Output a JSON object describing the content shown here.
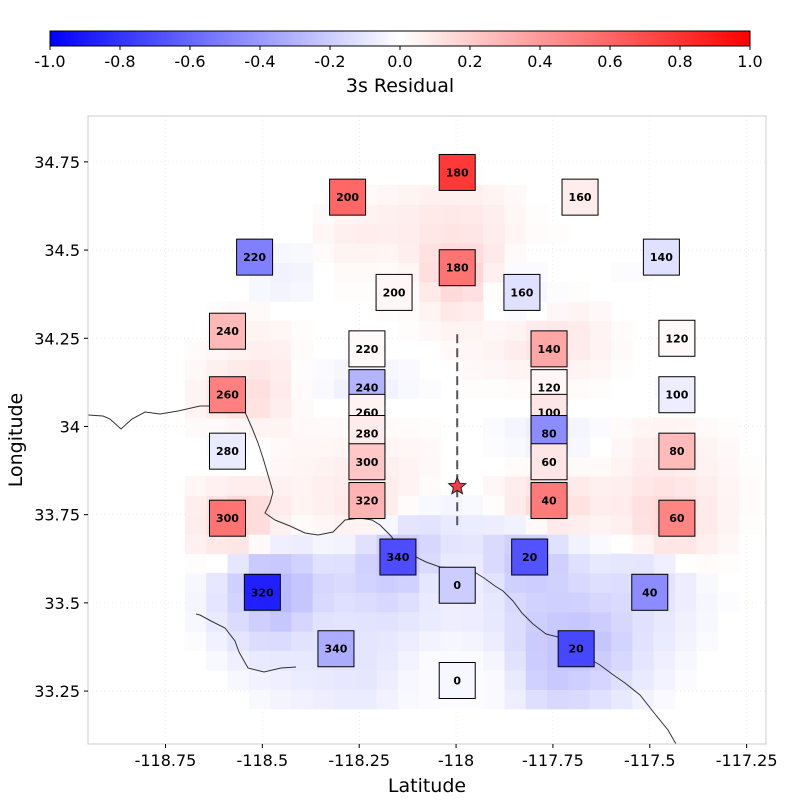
{
  "chart_data": {
    "type": "heatmap",
    "xlabel": "Latitude",
    "ylabel": "Longitude",
    "colorbar": {
      "label": "3s Residual",
      "range": [
        -1.0,
        1.0
      ],
      "ticks": [
        "-1.0",
        "-0.8",
        "-0.6",
        "-0.4",
        "-0.2",
        "0.0",
        "0.2",
        "0.4",
        "0.6",
        "0.8",
        "1.0"
      ],
      "colors": {
        "low": "#0000ff",
        "mid": "#ffffff",
        "high": "#ff0000"
      }
    },
    "xlim": [
      -118.95,
      -117.2
    ],
    "ylim": [
      33.1,
      34.88
    ],
    "xticks": [
      -118.75,
      -118.5,
      -118.25,
      -118,
      -117.75,
      -117.5,
      -117.25
    ],
    "xtick_labels": [
      "-118.75",
      "-118.5",
      "-118.25",
      "-118",
      "-117.75",
      "-117.5",
      "-117.25"
    ],
    "yticks": [
      33.25,
      33.5,
      33.75,
      34,
      34.25,
      34.5,
      34.75
    ],
    "ytick_labels": [
      "33.25",
      "33.5",
      "33.75",
      "34",
      "34.25",
      "34.5",
      "34.75"
    ],
    "epicenter": {
      "x": -117.997,
      "y": 33.83
    },
    "fault_trace": {
      "x": -117.997,
      "y_start": 33.72,
      "y_end": 34.27
    },
    "stations": [
      {
        "label": "180",
        "x": -117.997,
        "y": 34.72,
        "value": 0.78
      },
      {
        "label": "200",
        "x": -118.28,
        "y": 34.65,
        "value": 0.6
      },
      {
        "label": "160",
        "x": -117.68,
        "y": 34.65,
        "value": 0.07
      },
      {
        "label": "220",
        "x": -118.52,
        "y": 34.48,
        "value": -0.5
      },
      {
        "label": "140",
        "x": -117.47,
        "y": 34.48,
        "value": -0.12
      },
      {
        "label": "180",
        "x": -117.997,
        "y": 34.45,
        "value": 0.55
      },
      {
        "label": "200",
        "x": -118.16,
        "y": 34.38,
        "value": 0.03
      },
      {
        "label": "160",
        "x": -117.83,
        "y": 34.38,
        "value": -0.12
      },
      {
        "label": "240",
        "x": -118.59,
        "y": 34.27,
        "value": 0.28
      },
      {
        "label": "120",
        "x": -117.43,
        "y": 34.25,
        "value": 0.02
      },
      {
        "label": "220",
        "x": -118.23,
        "y": 34.22,
        "value": 0.02
      },
      {
        "label": "140",
        "x": -117.76,
        "y": 34.22,
        "value": 0.35
      },
      {
        "label": "240",
        "x": -118.23,
        "y": 34.11,
        "value": -0.3
      },
      {
        "label": "120",
        "x": -117.76,
        "y": 34.11,
        "value": 0.03
      },
      {
        "label": "260",
        "x": -118.59,
        "y": 34.09,
        "value": 0.5
      },
      {
        "label": "100",
        "x": -117.43,
        "y": 34.09,
        "value": -0.07
      },
      {
        "label": "260",
        "x": -118.23,
        "y": 34.04,
        "value": 0.05
      },
      {
        "label": "100",
        "x": -117.76,
        "y": 34.04,
        "value": 0.1
      },
      {
        "label": "280",
        "x": -118.23,
        "y": 33.98,
        "value": 0.08
      },
      {
        "label": "80",
        "x": -117.76,
        "y": 33.98,
        "value": -0.45
      },
      {
        "label": "280",
        "x": -118.59,
        "y": 33.93,
        "value": -0.08
      },
      {
        "label": "80",
        "x": -117.43,
        "y": 33.93,
        "value": 0.27
      },
      {
        "label": "300",
        "x": -118.23,
        "y": 33.9,
        "value": 0.22
      },
      {
        "label": "60",
        "x": -117.76,
        "y": 33.9,
        "value": 0.1
      },
      {
        "label": "320",
        "x": -118.23,
        "y": 33.79,
        "value": 0.3
      },
      {
        "label": "40",
        "x": -117.76,
        "y": 33.79,
        "value": 0.52
      },
      {
        "label": "300",
        "x": -118.59,
        "y": 33.74,
        "value": 0.55
      },
      {
        "label": "60",
        "x": -117.43,
        "y": 33.74,
        "value": 0.48
      },
      {
        "label": "340",
        "x": -118.15,
        "y": 33.63,
        "value": -0.7
      },
      {
        "label": "20",
        "x": -117.81,
        "y": 33.63,
        "value": -0.68
      },
      {
        "label": "0",
        "x": -117.997,
        "y": 33.55,
        "value": -0.2
      },
      {
        "label": "320",
        "x": -118.5,
        "y": 33.53,
        "value": -0.88
      },
      {
        "label": "40",
        "x": -117.5,
        "y": 33.53,
        "value": -0.45
      },
      {
        "label": "340",
        "x": -118.31,
        "y": 33.37,
        "value": -0.32
      },
      {
        "label": "20",
        "x": -117.69,
        "y": 33.37,
        "value": -0.72
      },
      {
        "label": "0",
        "x": -117.997,
        "y": 33.28,
        "value": -0.03
      }
    ]
  }
}
